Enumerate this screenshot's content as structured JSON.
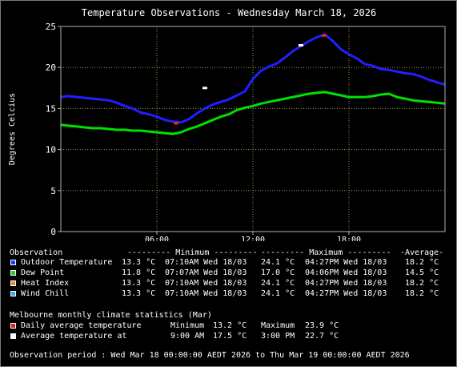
{
  "chart_data": {
    "type": "line",
    "title": "Temperature Observations - Wednesday March 18, 2026",
    "ylabel": "Degrees Celcius",
    "xlabel": "",
    "ylim": [
      0,
      25
    ],
    "yticks": [
      0,
      5,
      10,
      15,
      20,
      25
    ],
    "xlim_hours": [
      0,
      24
    ],
    "xticks": [
      {
        "hour": 6,
        "label": "06:00"
      },
      {
        "hour": 12,
        "label": "12:00"
      },
      {
        "hour": 18,
        "label": "18:00"
      }
    ],
    "grid": true,
    "series": [
      {
        "name": "Outdoor Temperature",
        "color": "#2020ff",
        "x": [
          0,
          0.5,
          1,
          1.5,
          2,
          2.5,
          3,
          3.5,
          4,
          4.5,
          5,
          5.5,
          6,
          6.5,
          7,
          7.5,
          8,
          8.5,
          9,
          9.5,
          10,
          10.5,
          11,
          11.5,
          12,
          12.5,
          13,
          13.5,
          14,
          14.5,
          15,
          15.5,
          16,
          16.5,
          17,
          17.5,
          18,
          18.5,
          19,
          19.5,
          20,
          20.5,
          21,
          21.5,
          22,
          22.5,
          23,
          23.5,
          24
        ],
        "values": [
          16.4,
          16.5,
          16.4,
          16.3,
          16.2,
          16.1,
          16.0,
          15.7,
          15.3,
          15.0,
          14.5,
          14.3,
          14.0,
          13.6,
          13.4,
          13.3,
          13.7,
          14.4,
          15.0,
          15.5,
          15.8,
          16.1,
          16.6,
          17.1,
          18.6,
          19.6,
          20.1,
          20.5,
          21.2,
          22.0,
          22.6,
          23.2,
          23.7,
          24.0,
          23.2,
          22.2,
          21.6,
          21.1,
          20.4,
          20.2,
          19.8,
          19.7,
          19.5,
          19.3,
          19.2,
          18.9,
          18.5,
          18.2,
          17.9
        ]
      },
      {
        "name": "Dew Point",
        "color": "#00e000",
        "x": [
          0,
          0.5,
          1,
          1.5,
          2,
          2.5,
          3,
          3.5,
          4,
          4.5,
          5,
          5.5,
          6,
          6.5,
          7,
          7.5,
          8,
          8.5,
          9,
          9.5,
          10,
          10.5,
          11,
          11.5,
          12,
          12.5,
          13,
          13.5,
          14,
          14.5,
          15,
          15.5,
          16,
          16.5,
          17,
          17.5,
          18,
          18.5,
          19,
          19.5,
          20,
          20.5,
          21,
          21.5,
          22,
          22.5,
          23,
          23.5,
          24
        ],
        "values": [
          13.0,
          12.9,
          12.8,
          12.7,
          12.6,
          12.6,
          12.5,
          12.4,
          12.4,
          12.3,
          12.3,
          12.2,
          12.1,
          12.0,
          11.9,
          12.1,
          12.5,
          12.8,
          13.2,
          13.6,
          14.0,
          14.3,
          14.8,
          15.1,
          15.3,
          15.6,
          15.8,
          16.0,
          16.2,
          16.4,
          16.6,
          16.8,
          16.9,
          17.0,
          16.8,
          16.6,
          16.4,
          16.4,
          16.4,
          16.5,
          16.7,
          16.8,
          16.4,
          16.2,
          16.0,
          15.9,
          15.8,
          15.7,
          15.6
        ]
      }
    ],
    "markers": [
      {
        "name": "Daily average temperature",
        "color": "#ff2020",
        "hour": 7.2,
        "value": 13.2
      },
      {
        "name": "Daily average temperature",
        "color": "#ff2020",
        "hour": 16.45,
        "value": 23.9
      },
      {
        "name": "Average temperature at",
        "color": "#ffffff",
        "hour": 9.0,
        "value": 17.5
      },
      {
        "name": "Average temperature at",
        "color": "#ffffff",
        "hour": 15.0,
        "value": 22.7
      }
    ]
  },
  "colors": {
    "plot_background": "#000000",
    "grid": "#90a050",
    "axis": "#b0b0b0"
  },
  "legend": {
    "header": {
      "observation": "Observation",
      "minimum": "--------- Minimum ---------",
      "maximum": "--------- Maximum ---------",
      "average": "-Average-"
    },
    "rows": [
      {
        "name": "Outdoor Temperature",
        "color": "#1f3bff",
        "min_value": "13.3 °C",
        "min_time": "07:10AM Wed 18/03",
        "max_value": "24.1 °C",
        "max_time": "04:27PM Wed 18/03",
        "average": "18.2 °C"
      },
      {
        "name": "Dew Point",
        "color": "#1fd41f",
        "min_value": "11.8 °C",
        "min_time": "07:07AM Wed 18/03",
        "max_value": "17.0 °C",
        "max_time": "04:06PM Wed 18/03",
        "average": "14.5 °C"
      },
      {
        "name": "Heat Index",
        "color": "#f08a40",
        "min_value": "13.3 °C",
        "min_time": "07:10AM Wed 18/03",
        "max_value": "24.1 °C",
        "max_time": "04:27PM Wed 18/03",
        "average": "18.2 °C"
      },
      {
        "name": "Wind Chill",
        "color": "#40a8e8",
        "min_value": "13.3 °C",
        "min_time": "07:10AM Wed 18/03",
        "max_value": "24.1 °C",
        "max_time": "04:27PM Wed 18/03",
        "average": "18.2 °C"
      }
    ]
  },
  "climate": {
    "heading": "Melbourne monthly climate statistics (Mar)",
    "daily_avg": {
      "label": "Daily average temperature",
      "color": "#e02020",
      "min_label": "Minimum",
      "min_value": "13.2 °C",
      "max_label": "Maximum",
      "max_value": "23.9 °C"
    },
    "avg_at": {
      "label": "Average temperature at",
      "color": "#ffffff",
      "time1": "9:00 AM",
      "value1": "17.5 °C",
      "time2": "3:00 PM",
      "value2": "22.7 °C"
    }
  },
  "period": "Observation period : Wed Mar 18 00:00:00 AEDT 2026 to Thu Mar 19 00:00:00 AEDT 2026"
}
